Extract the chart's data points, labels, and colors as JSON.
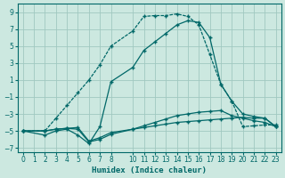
{
  "xlabel": "Humidex (Indice chaleur)",
  "bg_color": "#cce8e0",
  "grid_color": "#a0c8c0",
  "line_color": "#006868",
  "xlim": [
    -0.5,
    23.5
  ],
  "ylim": [
    -7.5,
    10.0
  ],
  "yticks": [
    -7,
    -5,
    -3,
    -1,
    1,
    3,
    5,
    7,
    9
  ],
  "xticks": [
    0,
    1,
    2,
    3,
    4,
    5,
    6,
    7,
    8,
    10,
    11,
    12,
    13,
    14,
    15,
    16,
    17,
    18,
    19,
    20,
    21,
    22,
    23
  ],
  "line_main_x": [
    0,
    2,
    3,
    4,
    5,
    6,
    7,
    8,
    10,
    11,
    12,
    13,
    14,
    15,
    16,
    17,
    18,
    19,
    20,
    21,
    22,
    23
  ],
  "line_main_y": [
    -5.0,
    -5.0,
    -3.5,
    -2.0,
    -0.5,
    1.0,
    2.8,
    5.0,
    6.8,
    8.5,
    8.6,
    8.6,
    8.8,
    8.5,
    7.5,
    4.0,
    0.5,
    -1.5,
    -4.5,
    -4.4,
    -4.3,
    -4.3
  ],
  "line_a_x": [
    0,
    2,
    3,
    4,
    5,
    6,
    7,
    8,
    10,
    11,
    12,
    13,
    14,
    15,
    16,
    17,
    18,
    19,
    20,
    21,
    22,
    23
  ],
  "line_a_y": [
    -5.0,
    -5.0,
    -4.8,
    -4.7,
    -4.6,
    -6.2,
    -5.8,
    -5.2,
    -4.8,
    -4.6,
    -4.4,
    -4.2,
    -4.0,
    -3.9,
    -3.8,
    -3.7,
    -3.6,
    -3.5,
    -3.4,
    -3.5,
    -3.5,
    -4.5
  ],
  "line_b_x": [
    0,
    2,
    3,
    4,
    5,
    6,
    7,
    8,
    10,
    11,
    12,
    13,
    14,
    15,
    16,
    17,
    18,
    19,
    20,
    21,
    22,
    23
  ],
  "line_b_y": [
    -5.0,
    -5.0,
    -4.8,
    -4.7,
    -4.8,
    -6.3,
    -6.0,
    -5.4,
    -4.8,
    -4.4,
    -4.0,
    -3.6,
    -3.2,
    -3.0,
    -2.8,
    -2.7,
    -2.6,
    -3.2,
    -3.5,
    -3.8,
    -4.0,
    -4.5
  ],
  "line_c_x": [
    0,
    2,
    3,
    4,
    5,
    6,
    7,
    8,
    10,
    11,
    12,
    13,
    14,
    15,
    16,
    17,
    18,
    19,
    20,
    21,
    22,
    23
  ],
  "line_c_y": [
    -5.0,
    -5.5,
    -5.0,
    -4.8,
    -5.5,
    -6.5,
    -4.5,
    0.8,
    2.5,
    4.5,
    5.5,
    6.5,
    7.5,
    8.0,
    7.8,
    6.0,
    0.5,
    -1.5,
    -3.0,
    -3.3,
    -3.5,
    -4.5
  ]
}
